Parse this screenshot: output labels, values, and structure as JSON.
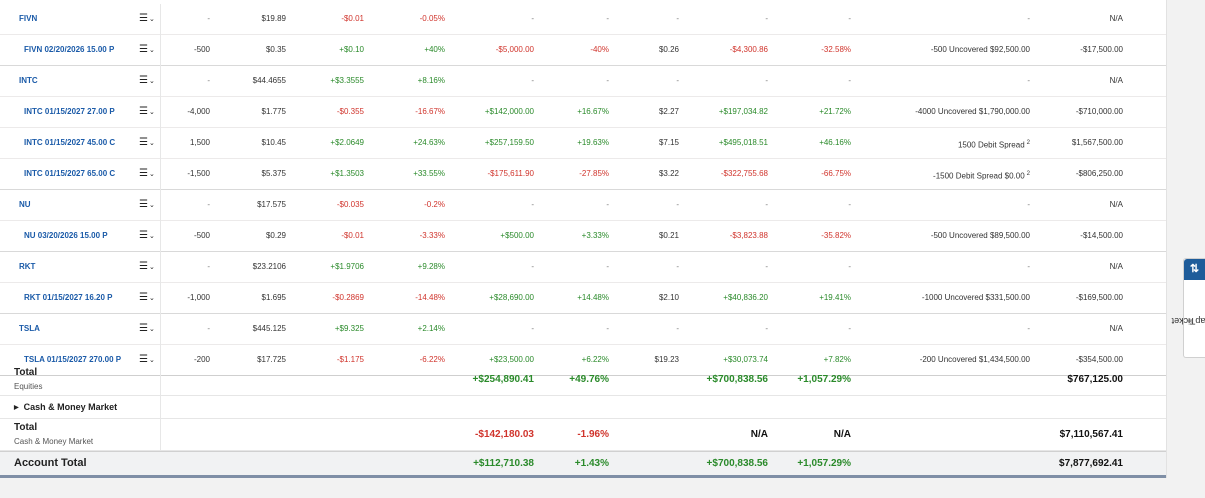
{
  "positions": [
    {
      "symbol": "FIVN",
      "option": false,
      "qty": "-",
      "price": "$19.89",
      "chg": "-$0.01",
      "chg_pct": "-0.05%",
      "gain": "-",
      "gain_pct": "-",
      "cost": "-",
      "total_gain": "-",
      "total_gain_pct": "-",
      "position_info": "-",
      "market_value": "N/A"
    },
    {
      "symbol": "FIVN 02/20/2026 15.00 P",
      "option": true,
      "qty": "-500",
      "price": "$0.35",
      "chg": "+$0.10",
      "chg_pct": "+40%",
      "gain": "-$5,000.00",
      "gain_pct": "-40%",
      "cost": "$0.26",
      "total_gain": "-$4,300.86",
      "total_gain_pct": "-32.58%",
      "position_info": "-500 Uncovered $92,500.00",
      "market_value": "-$17,500.00"
    },
    {
      "symbol": "INTC",
      "option": false,
      "qty": "-",
      "price": "$44.4655",
      "chg": "+$3.3555",
      "chg_pct": "+8.16%",
      "gain": "-",
      "gain_pct": "-",
      "cost": "-",
      "total_gain": "-",
      "total_gain_pct": "-",
      "position_info": "-",
      "market_value": "N/A"
    },
    {
      "symbol": "INTC 01/15/2027 27.00 P",
      "option": true,
      "qty": "-4,000",
      "price": "$1.775",
      "chg": "-$0.355",
      "chg_pct": "-16.67%",
      "gain": "+$142,000.00",
      "gain_pct": "+16.67%",
      "cost": "$2.27",
      "total_gain": "+$197,034.82",
      "total_gain_pct": "+21.72%",
      "position_info": "-4000 Uncovered $1,790,000.00",
      "market_value": "-$710,000.00"
    },
    {
      "symbol": "INTC 01/15/2027 45.00 C",
      "option": true,
      "qty": "1,500",
      "price": "$10.45",
      "chg": "+$2.0649",
      "chg_pct": "+24.63%",
      "gain": "+$257,159.50",
      "gain_pct": "+19.63%",
      "cost": "$7.15",
      "total_gain": "+$495,018.51",
      "total_gain_pct": "+46.16%",
      "position_info": "1500 Debit Spread",
      "position_sup": "2",
      "market_value": "$1,567,500.00"
    },
    {
      "symbol": "INTC 01/15/2027 65.00 C",
      "option": true,
      "qty": "-1,500",
      "price": "$5.375",
      "chg": "+$1.3503",
      "chg_pct": "+33.55%",
      "gain": "-$175,611.90",
      "gain_pct": "-27.85%",
      "cost": "$3.22",
      "total_gain": "-$322,755.68",
      "total_gain_pct": "-66.75%",
      "position_info": "-1500 Debit Spread $0.00",
      "position_sup": "2",
      "market_value": "-$806,250.00"
    },
    {
      "symbol": "NU",
      "option": false,
      "qty": "-",
      "price": "$17.575",
      "chg": "-$0.035",
      "chg_pct": "-0.2%",
      "gain": "-",
      "gain_pct": "-",
      "cost": "-",
      "total_gain": "-",
      "total_gain_pct": "-",
      "position_info": "-",
      "market_value": "N/A"
    },
    {
      "symbol": "NU 03/20/2026 15.00 P",
      "option": true,
      "qty": "-500",
      "price": "$0.29",
      "chg": "-$0.01",
      "chg_pct": "-3.33%",
      "gain": "+$500.00",
      "gain_pct": "+3.33%",
      "cost": "$0.21",
      "total_gain": "-$3,823.88",
      "total_gain_pct": "-35.82%",
      "position_info": "-500 Uncovered $89,500.00",
      "market_value": "-$14,500.00"
    },
    {
      "symbol": "RKT",
      "option": false,
      "qty": "-",
      "price": "$23.2106",
      "chg": "+$1.9706",
      "chg_pct": "+9.28%",
      "gain": "-",
      "gain_pct": "-",
      "cost": "-",
      "total_gain": "-",
      "total_gain_pct": "-",
      "position_info": "-",
      "market_value": "N/A"
    },
    {
      "symbol": "RKT 01/15/2027 16.20 P",
      "option": true,
      "qty": "-1,000",
      "price": "$1.695",
      "chg": "-$0.2869",
      "chg_pct": "-14.48%",
      "gain": "+$28,690.00",
      "gain_pct": "+14.48%",
      "cost": "$2.10",
      "total_gain": "+$40,836.20",
      "total_gain_pct": "+19.41%",
      "position_info": "-1000 Uncovered $331,500.00",
      "market_value": "-$169,500.00"
    },
    {
      "symbol": "TSLA",
      "option": false,
      "qty": "-",
      "price": "$445.125",
      "chg": "+$9.325",
      "chg_pct": "+2.14%",
      "gain": "-",
      "gain_pct": "-",
      "cost": "-",
      "total_gain": "-",
      "total_gain_pct": "-",
      "position_info": "-",
      "market_value": "N/A"
    },
    {
      "symbol": "TSLA 01/15/2027 270.00 P",
      "option": true,
      "qty": "-200",
      "price": "$17.725",
      "chg": "-$1.175",
      "chg_pct": "-6.22%",
      "gain": "+$23,500.00",
      "gain_pct": "+6.22%",
      "cost": "$19.23",
      "total_gain": "+$30,073.74",
      "total_gain_pct": "+7.82%",
      "position_info": "-200 Uncovered $1,434,500.00",
      "market_value": "-$354,500.00"
    }
  ],
  "equities_total": {
    "label": "Total",
    "sub": "Equities",
    "gain": "+$254,890.41",
    "gain_pct": "+49.76%",
    "total_gain": "+$700,838.56",
    "total_gain_pct": "+1,057.29%",
    "market_value": "$767,125.00"
  },
  "cash_section": {
    "label": "Cash & Money Market"
  },
  "cash_total": {
    "label": "Total",
    "sub": "Cash & Money Market",
    "gain": "-$142,180.03",
    "gain_pct": "-1.96%",
    "total_gain": "N/A",
    "total_gain_pct": "N/A",
    "market_value": "$7,110,567.41"
  },
  "account_total": {
    "label": "Account Total",
    "gain": "+$112,710.38",
    "gain_pct": "+1.43%",
    "total_gain": "+$700,838.56",
    "total_gain_pct": "+1,057.29%",
    "market_value": "$7,877,692.41"
  },
  "snapticket": {
    "label": "SnapTicket",
    "mark": "®",
    "icon": "swap-arrows-icon",
    "button_glyph": "⇅"
  },
  "icons": {
    "row_menu": "menu-icon",
    "row_menu_glyph": "☰",
    "row_chevron_glyph": "⌄",
    "expand_glyph": "▶"
  },
  "colors": {
    "positive": "#2a8a2a",
    "negative": "#d0342c",
    "link": "#1a5aa8",
    "accent": "#1e5c9a"
  }
}
